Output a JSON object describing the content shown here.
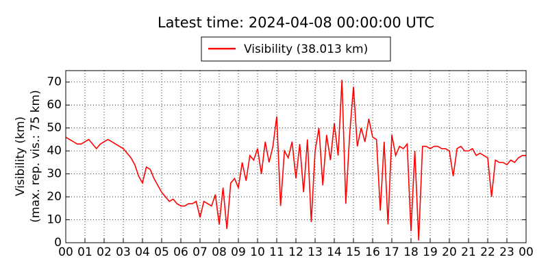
{
  "chart_data": {
    "type": "line",
    "title": "Latest time: 2024-04-08 00:00:00 UTC",
    "ylabel": [
      "Visibility (km)",
      "(max. rep. vis.: 75 km)"
    ],
    "x": [
      0,
      0.2,
      0.4,
      0.6,
      0.8,
      1,
      1.2,
      1.4,
      1.6,
      1.8,
      2,
      2.2,
      2.4,
      2.6,
      2.8,
      3,
      3.2,
      3.4,
      3.6,
      3.8,
      4,
      4.2,
      4.4,
      4.6,
      4.8,
      5,
      5.2,
      5.4,
      5.6,
      5.8,
      6,
      6.2,
      6.4,
      6.6,
      6.8,
      7,
      7.2,
      7.4,
      7.6,
      7.8,
      8,
      8.2,
      8.4,
      8.6,
      8.8,
      9,
      9.2,
      9.4,
      9.6,
      9.8,
      10,
      10.2,
      10.4,
      10.6,
      10.8,
      11,
      11.2,
      11.4,
      11.6,
      11.8,
      12,
      12.2,
      12.4,
      12.6,
      12.8,
      13,
      13.2,
      13.4,
      13.6,
      13.8,
      14,
      14.2,
      14.4,
      14.6,
      14.8,
      15,
      15.2,
      15.4,
      15.6,
      15.8,
      16,
      16.2,
      16.4,
      16.6,
      16.8,
      17,
      17.2,
      17.4,
      17.6,
      17.8,
      18,
      18.2,
      18.4,
      18.6,
      18.8,
      19,
      19.2,
      19.4,
      19.6,
      19.8,
      20,
      20.2,
      20.4,
      20.6,
      20.8,
      21,
      21.2,
      21.4,
      21.6,
      21.8,
      22,
      22.2,
      22.4,
      22.6,
      22.8,
      23,
      23.2,
      23.4,
      23.6,
      23.8,
      24
    ],
    "series": [
      {
        "name": "Visibility (38.013 km)",
        "color": "#ff0000",
        "values": [
          46,
          45,
          44,
          43,
          43,
          44,
          45,
          43,
          41,
          43,
          44,
          45,
          44,
          43,
          42,
          41,
          39,
          37,
          34,
          29,
          26,
          33,
          32,
          28,
          25,
          22,
          20,
          18,
          19,
          17,
          16,
          16,
          17,
          17,
          18,
          11,
          18,
          17,
          16,
          21,
          8,
          24,
          6,
          26,
          28,
          24,
          35,
          27,
          38,
          36,
          41,
          30,
          44,
          35,
          42,
          55,
          16,
          40,
          37,
          44,
          28,
          43,
          22,
          45,
          9,
          40,
          50,
          25,
          47,
          36,
          52,
          38,
          71,
          17,
          47,
          68,
          42,
          50,
          44,
          54,
          46,
          45,
          14,
          44,
          8,
          47,
          38,
          42,
          41,
          43,
          5,
          40,
          1,
          42,
          42,
          41,
          42,
          42,
          41,
          41,
          40,
          29,
          41,
          42,
          40,
          40,
          41,
          38,
          39,
          38,
          37,
          20,
          36,
          35,
          35,
          34,
          36,
          35,
          37,
          38,
          38
        ]
      }
    ],
    "xlim": [
      0,
      24
    ],
    "xticks": [
      {
        "value": 0,
        "label": "00"
      },
      {
        "value": 1,
        "label": "01"
      },
      {
        "value": 2,
        "label": "02"
      },
      {
        "value": 3,
        "label": "03"
      },
      {
        "value": 4,
        "label": "04"
      },
      {
        "value": 5,
        "label": "05"
      },
      {
        "value": 6,
        "label": "06"
      },
      {
        "value": 7,
        "label": "07"
      },
      {
        "value": 8,
        "label": "08"
      },
      {
        "value": 9,
        "label": "09"
      },
      10,
      11,
      12,
      13,
      14,
      15,
      16,
      17,
      18,
      19,
      20,
      21,
      22,
      23,
      {
        "value": 24,
        "label": "00"
      }
    ],
    "ylim": [
      0,
      75
    ],
    "yticks": [
      0,
      10,
      20,
      30,
      40,
      50,
      60,
      70
    ],
    "grid": true
  }
}
